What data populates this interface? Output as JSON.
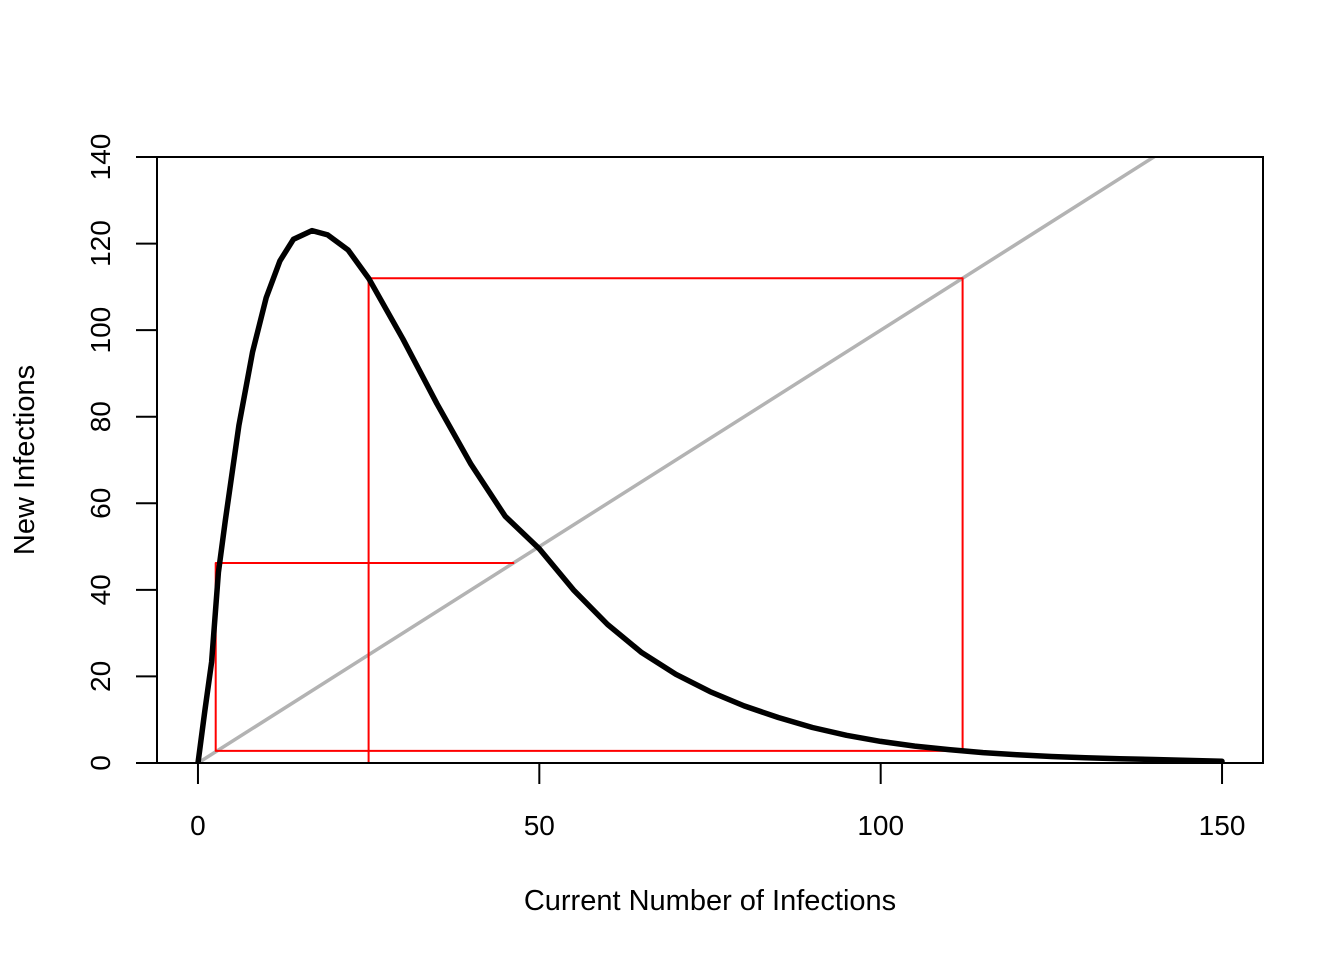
{
  "chart_data": {
    "type": "line",
    "title": "",
    "xlabel": "Current Number of Infections",
    "ylabel": "New Infections",
    "xlim": [
      -6,
      156
    ],
    "ylim": [
      0,
      140
    ],
    "x_ticks": [
      0,
      50,
      100,
      150
    ],
    "y_ticks": [
      0,
      20,
      40,
      60,
      80,
      100,
      120,
      140
    ],
    "grid": false,
    "legend": "none",
    "series": [
      {
        "kind": "curve",
        "color": "#000000",
        "points": [
          [
            0,
            0
          ],
          [
            1,
            12
          ],
          [
            2,
            23.3
          ],
          [
            3,
            44
          ],
          [
            4,
            56
          ],
          [
            6,
            78
          ],
          [
            8,
            95
          ],
          [
            10,
            107.5
          ],
          [
            12,
            116
          ],
          [
            14,
            121
          ],
          [
            16.7,
            123
          ],
          [
            19,
            122
          ],
          [
            22,
            118.5
          ],
          [
            25,
            112
          ],
          [
            30,
            98
          ],
          [
            35,
            83
          ],
          [
            40,
            69
          ],
          [
            45,
            57
          ],
          [
            50,
            49.5
          ],
          [
            55,
            40
          ],
          [
            60,
            32
          ],
          [
            65,
            25.5
          ],
          [
            70,
            20.5
          ],
          [
            75,
            16.5
          ],
          [
            80,
            13.2
          ],
          [
            85,
            10.5
          ],
          [
            90,
            8.2
          ],
          [
            95,
            6.4
          ],
          [
            100,
            5
          ],
          [
            105,
            3.9
          ],
          [
            110,
            3.1
          ],
          [
            115,
            2.4
          ],
          [
            120,
            1.9
          ],
          [
            125,
            1.5
          ],
          [
            130,
            1.2
          ],
          [
            135,
            1
          ],
          [
            140,
            0.8
          ],
          [
            145,
            0.6
          ],
          [
            150,
            0.4
          ]
        ]
      },
      {
        "kind": "identity-line",
        "color": "#b3b3b3",
        "points": [
          [
            0,
            0
          ],
          [
            141,
            141
          ]
        ]
      },
      {
        "kind": "cobweb",
        "color": "#ff0000",
        "points": [
          [
            25,
            0
          ],
          [
            25,
            112
          ],
          [
            112,
            112
          ],
          [
            112,
            2.8
          ],
          [
            2.6,
            2.8
          ],
          [
            2.6,
            46.2
          ],
          [
            46.2,
            46.2
          ]
        ]
      }
    ]
  }
}
